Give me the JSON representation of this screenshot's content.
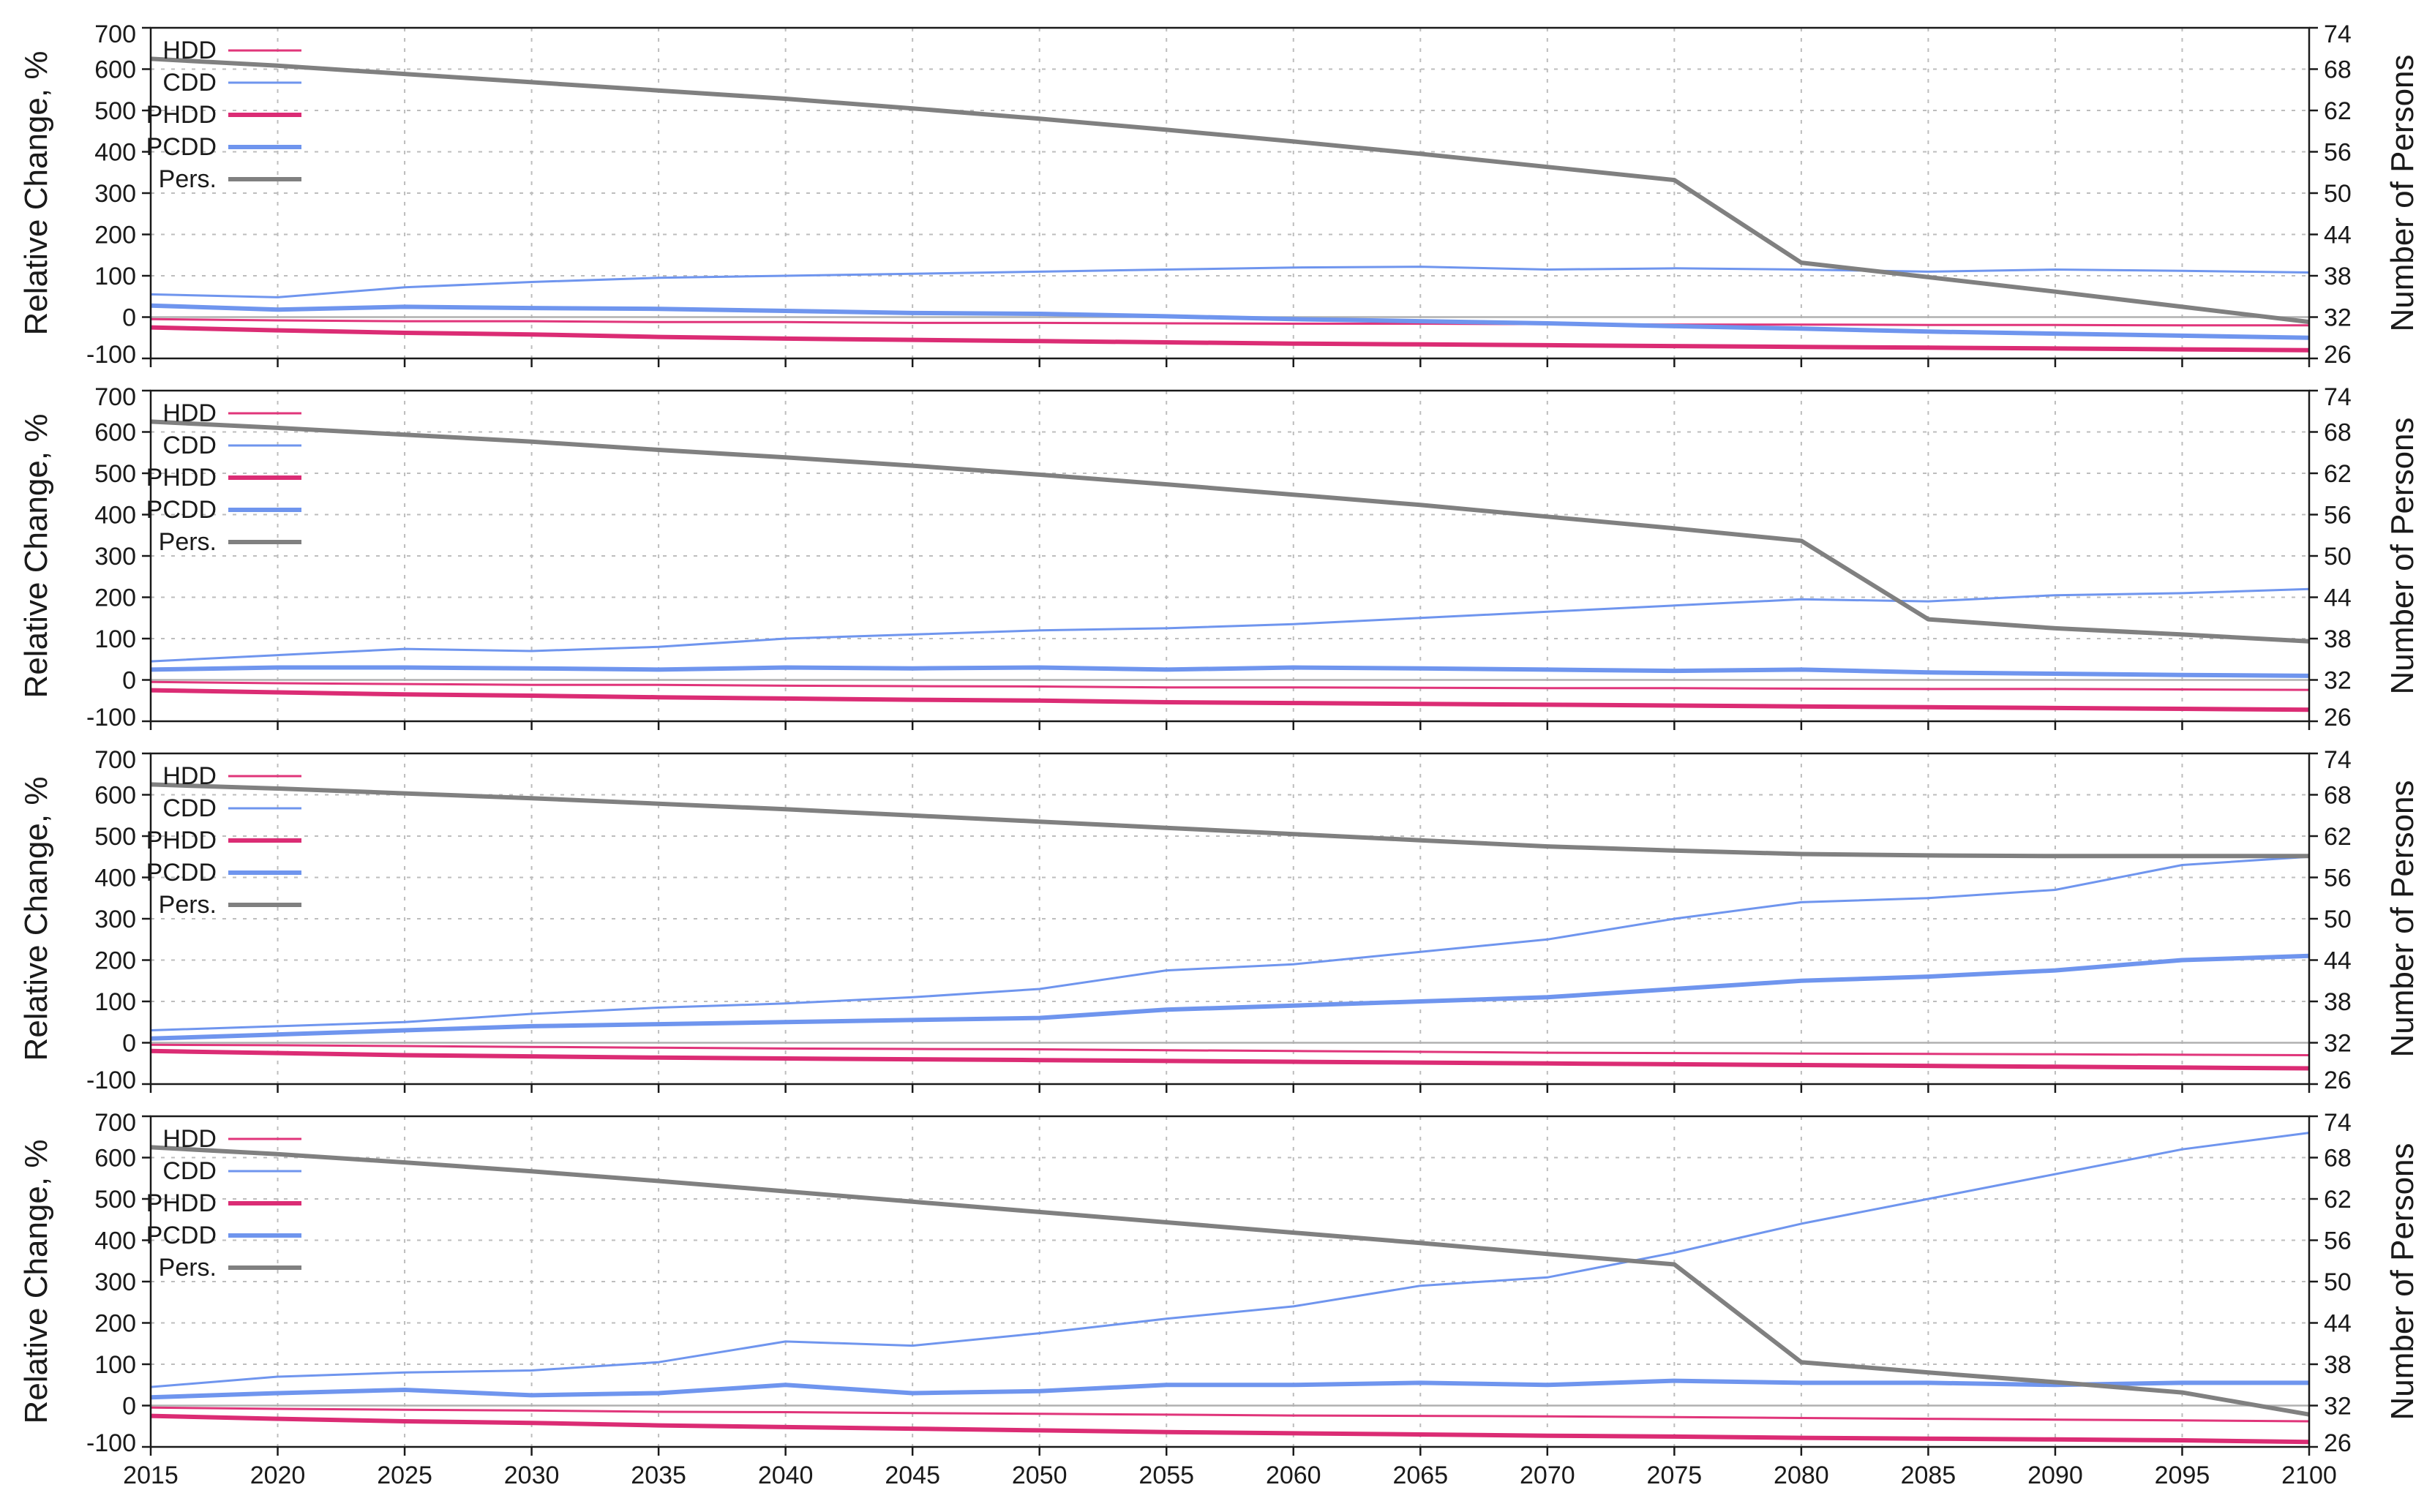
{
  "colors": {
    "HDD": "#e0357a",
    "CDD": "#6f95ee",
    "PHDD": "#db2c74",
    "PCDD": "#6f95ee",
    "Pers": "#808080",
    "grid": "#bdbdbd",
    "zeroline": "#b0b0b0",
    "axis": "#1a1a1a"
  },
  "chart_data": [
    {
      "type": "line",
      "ylabel": "Relative Change, %",
      "y2label": "Number of Persons",
      "xlim": [
        2015,
        2100
      ],
      "ylim": [
        -100,
        700
      ],
      "y2lim": [
        26,
        74
      ],
      "yticks": [
        "700",
        "600",
        "500",
        "400",
        "300",
        "200",
        "100",
        "0",
        "-100"
      ],
      "y2ticks": [
        "74",
        "68",
        "62",
        "56",
        "50",
        "44",
        "38",
        "32",
        "26"
      ],
      "grid": true,
      "legend_position": "top-left",
      "legend": [
        "HDD",
        "CDD",
        "PHDD",
        "PCDD",
        "Pers."
      ],
      "x": [
        2015,
        2020,
        2025,
        2030,
        2035,
        2040,
        2045,
        2050,
        2055,
        2060,
        2065,
        2070,
        2075,
        2080,
        2085,
        2090,
        2095,
        2100
      ],
      "series": [
        {
          "name": "HDD",
          "axis": "left",
          "width": "thin",
          "values": [
            -5,
            -8,
            -10,
            -10,
            -12,
            -12,
            -14,
            -14,
            -15,
            -16,
            -16,
            -17,
            -18,
            -18,
            -19,
            -19,
            -20,
            -20
          ]
        },
        {
          "name": "CDD",
          "axis": "left",
          "width": "thin",
          "values": [
            55,
            48,
            72,
            85,
            95,
            100,
            105,
            110,
            115,
            120,
            122,
            115,
            118,
            115,
            110,
            115,
            112,
            108
          ]
        },
        {
          "name": "PHDD",
          "axis": "left",
          "width": "thick",
          "values": [
            -25,
            -32,
            -38,
            -42,
            -48,
            -52,
            -55,
            -58,
            -61,
            -64,
            -66,
            -68,
            -70,
            -72,
            -74,
            -76,
            -78,
            -80
          ]
        },
        {
          "name": "PCDD",
          "axis": "left",
          "width": "thick",
          "values": [
            28,
            18,
            25,
            22,
            20,
            15,
            10,
            8,
            2,
            -5,
            -10,
            -15,
            -22,
            -28,
            -35,
            -40,
            -45,
            -50
          ]
        },
        {
          "name": "Pers.",
          "axis": "right",
          "width": "thick",
          "values": [
            69.5,
            68.5,
            67.3,
            66.1,
            64.9,
            63.7,
            62.3,
            60.8,
            59.2,
            57.5,
            55.7,
            53.8,
            51.9,
            39.9,
            37.8,
            35.7,
            33.5,
            31.3
          ]
        }
      ]
    },
    {
      "type": "line",
      "ylabel": "Relative Change, %",
      "y2label": "Number of Persons",
      "xlim": [
        2015,
        2100
      ],
      "ylim": [
        -100,
        700
      ],
      "y2lim": [
        26,
        74
      ],
      "yticks": [
        "700",
        "600",
        "500",
        "400",
        "300",
        "200",
        "100",
        "0",
        "-100"
      ],
      "y2ticks": [
        "74",
        "68",
        "62",
        "56",
        "50",
        "44",
        "38",
        "32",
        "26"
      ],
      "grid": true,
      "legend_position": "top-left",
      "legend": [
        "HDD",
        "CDD",
        "PHDD",
        "PCDD",
        "Pers."
      ],
      "x": [
        2015,
        2020,
        2025,
        2030,
        2035,
        2040,
        2045,
        2050,
        2055,
        2060,
        2065,
        2070,
        2075,
        2080,
        2085,
        2090,
        2095,
        2100
      ],
      "series": [
        {
          "name": "HDD",
          "axis": "left",
          "width": "thin",
          "values": [
            -5,
            -8,
            -10,
            -12,
            -12,
            -14,
            -15,
            -16,
            -18,
            -18,
            -19,
            -20,
            -20,
            -21,
            -22,
            -22,
            -23,
            -24
          ]
        },
        {
          "name": "CDD",
          "axis": "left",
          "width": "thin",
          "values": [
            45,
            60,
            75,
            70,
            80,
            100,
            110,
            120,
            125,
            135,
            150,
            165,
            180,
            195,
            190,
            205,
            210,
            220
          ]
        },
        {
          "name": "PHDD",
          "axis": "left",
          "width": "thick",
          "values": [
            -25,
            -30,
            -35,
            -38,
            -42,
            -45,
            -48,
            -50,
            -54,
            -56,
            -58,
            -60,
            -62,
            -64,
            -66,
            -68,
            -70,
            -72
          ]
        },
        {
          "name": "PCDD",
          "axis": "left",
          "width": "thick",
          "values": [
            25,
            30,
            30,
            28,
            25,
            30,
            28,
            30,
            25,
            30,
            28,
            25,
            22,
            25,
            18,
            15,
            12,
            10
          ]
        },
        {
          "name": "Pers.",
          "axis": "right",
          "width": "thick",
          "values": [
            69.5,
            68.6,
            67.6,
            66.6,
            65.4,
            64.3,
            63.1,
            61.8,
            60.4,
            58.9,
            57.4,
            55.7,
            54.0,
            52.2,
            40.8,
            39.5,
            38.6,
            37.6
          ]
        }
      ]
    },
    {
      "type": "line",
      "ylabel": "Relative Change, %",
      "y2label": "Number of Persons",
      "xlim": [
        2015,
        2100
      ],
      "ylim": [
        -100,
        700
      ],
      "y2lim": [
        26,
        74
      ],
      "yticks": [
        "700",
        "600",
        "500",
        "400",
        "300",
        "200",
        "100",
        "0",
        "-100"
      ],
      "y2ticks": [
        "74",
        "68",
        "62",
        "56",
        "50",
        "44",
        "38",
        "32",
        "26"
      ],
      "grid": true,
      "legend_position": "top-left",
      "legend": [
        "HDD",
        "CDD",
        "PHDD",
        "PCDD",
        "Pers."
      ],
      "x": [
        2015,
        2020,
        2025,
        2030,
        2035,
        2040,
        2045,
        2050,
        2055,
        2060,
        2065,
        2070,
        2075,
        2080,
        2085,
        2090,
        2095,
        2100
      ],
      "series": [
        {
          "name": "HDD",
          "axis": "left",
          "width": "thin",
          "values": [
            -5,
            -6,
            -8,
            -10,
            -12,
            -14,
            -15,
            -16,
            -18,
            -20,
            -22,
            -24,
            -25,
            -26,
            -27,
            -28,
            -29,
            -30
          ]
        },
        {
          "name": "CDD",
          "axis": "left",
          "width": "thin",
          "values": [
            30,
            40,
            50,
            70,
            85,
            95,
            110,
            130,
            175,
            190,
            220,
            250,
            300,
            340,
            350,
            370,
            430,
            450
          ]
        },
        {
          "name": "PHDD",
          "axis": "left",
          "width": "thick",
          "values": [
            -20,
            -25,
            -30,
            -33,
            -36,
            -38,
            -40,
            -42,
            -44,
            -46,
            -48,
            -50,
            -52,
            -54,
            -56,
            -58,
            -60,
            -62
          ]
        },
        {
          "name": "PCDD",
          "axis": "left",
          "width": "thick",
          "values": [
            10,
            20,
            30,
            40,
            45,
            50,
            55,
            60,
            80,
            90,
            100,
            110,
            130,
            150,
            160,
            175,
            200,
            210
          ]
        },
        {
          "name": "Pers.",
          "axis": "right",
          "width": "thick",
          "values": [
            69.5,
            68.9,
            68.2,
            67.5,
            66.7,
            65.9,
            65.0,
            64.1,
            63.2,
            62.3,
            61.4,
            60.5,
            59.9,
            59.4,
            59.2,
            59.1,
            59.1,
            59.1
          ]
        }
      ]
    },
    {
      "type": "line",
      "ylabel": "Relative Change, %",
      "y2label": "Number of Persons",
      "xlabel": "",
      "xlim": [
        2015,
        2100
      ],
      "ylim": [
        -100,
        700
      ],
      "y2lim": [
        26,
        74
      ],
      "yticks": [
        "700",
        "600",
        "500",
        "400",
        "300",
        "200",
        "100",
        "0",
        "-100"
      ],
      "y2ticks": [
        "74",
        "68",
        "62",
        "56",
        "50",
        "44",
        "38",
        "32",
        "26"
      ],
      "xticks": [
        "2015",
        "2020",
        "2025",
        "2030",
        "2035",
        "2040",
        "2045",
        "2050",
        "2055",
        "2060",
        "2065",
        "2070",
        "2075",
        "2080",
        "2085",
        "2090",
        "2095",
        "2100"
      ],
      "grid": true,
      "legend_position": "top-left",
      "legend": [
        "HDD",
        "CDD",
        "PHDD",
        "PCDD",
        "Pers."
      ],
      "x": [
        2015,
        2020,
        2025,
        2030,
        2035,
        2040,
        2045,
        2050,
        2055,
        2060,
        2065,
        2070,
        2075,
        2080,
        2085,
        2090,
        2095,
        2100
      ],
      "series": [
        {
          "name": "HDD",
          "axis": "left",
          "width": "thin",
          "values": [
            -5,
            -8,
            -10,
            -12,
            -15,
            -16,
            -18,
            -20,
            -22,
            -24,
            -25,
            -26,
            -28,
            -30,
            -32,
            -34,
            -36,
            -38
          ]
        },
        {
          "name": "CDD",
          "axis": "left",
          "width": "thin",
          "values": [
            45,
            70,
            80,
            85,
            105,
            155,
            145,
            175,
            210,
            240,
            290,
            310,
            370,
            440,
            500,
            560,
            620,
            660
          ]
        },
        {
          "name": "PHDD",
          "axis": "left",
          "width": "thick",
          "values": [
            -25,
            -32,
            -38,
            -42,
            -48,
            -52,
            -56,
            -60,
            -64,
            -67,
            -70,
            -73,
            -75,
            -78,
            -80,
            -82,
            -84,
            -88
          ]
        },
        {
          "name": "PCDD",
          "axis": "left",
          "width": "thick",
          "values": [
            20,
            30,
            38,
            25,
            30,
            50,
            30,
            35,
            50,
            50,
            55,
            50,
            60,
            55,
            55,
            50,
            55,
            55
          ]
        },
        {
          "name": "Pers.",
          "axis": "right",
          "width": "thick",
          "values": [
            69.5,
            68.5,
            67.3,
            66.0,
            64.6,
            63.1,
            61.6,
            60.1,
            58.6,
            57.1,
            55.6,
            54.0,
            52.5,
            38.3,
            36.8,
            35.4,
            33.9,
            30.7
          ]
        }
      ]
    }
  ]
}
